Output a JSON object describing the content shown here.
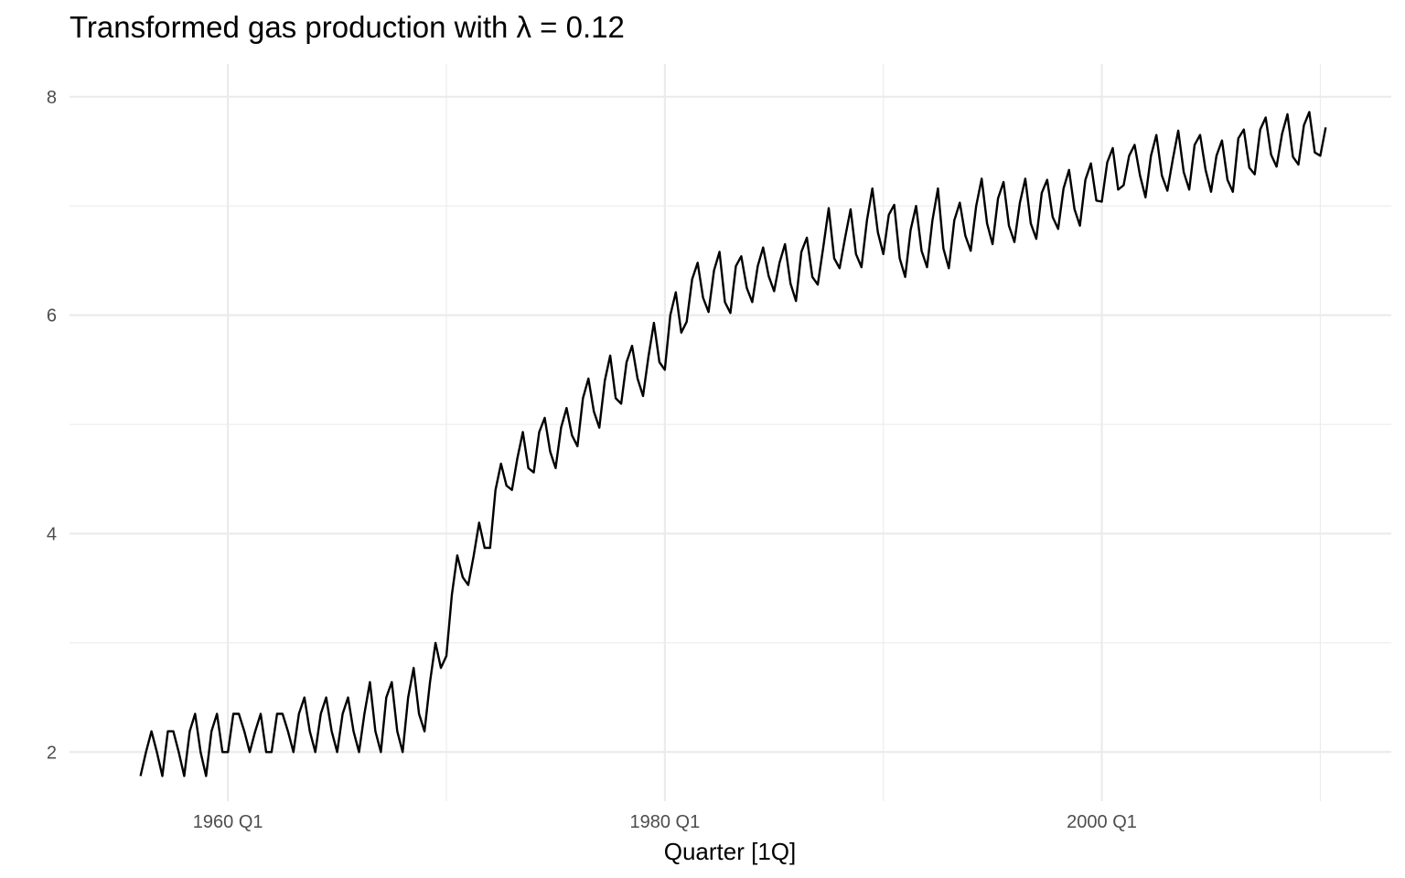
{
  "chart_data": {
    "type": "line",
    "title": "Transformed gas production with λ = 0.12",
    "xlabel": "Quarter [1Q]",
    "ylabel": "",
    "x_start": "1956 Q1",
    "x_end": "2010 Q2",
    "xlim": [
      "1952 Q4",
      "2013 Q2"
    ],
    "ylim": [
      1.55,
      8.3
    ],
    "x_ticks": [
      {
        "quarter": "1960 Q1",
        "label": "1960 Q1"
      },
      {
        "quarter": "1980 Q1",
        "label": "1980 Q1"
      },
      {
        "quarter": "2000 Q1",
        "label": "2000 Q1"
      }
    ],
    "x_minor_ticks": [
      "1970 Q1",
      "1990 Q1",
      "2010 Q1"
    ],
    "y_ticks": [
      2,
      4,
      6,
      8
    ],
    "y_minor_ticks": [
      3,
      5,
      7
    ],
    "grid": true,
    "legend": "none",
    "series": [
      {
        "color": "#000000",
        "values": [
          1.78,
          2.0,
          2.19,
          2.0,
          1.78,
          2.19,
          2.19,
          2.0,
          1.78,
          2.19,
          2.35,
          2.0,
          1.78,
          2.19,
          2.35,
          2.0,
          2.0,
          2.35,
          2.35,
          2.19,
          2.0,
          2.19,
          2.35,
          2.0,
          2.0,
          2.35,
          2.35,
          2.19,
          2.0,
          2.35,
          2.5,
          2.19,
          2.0,
          2.35,
          2.5,
          2.19,
          2.0,
          2.35,
          2.5,
          2.19,
          2.0,
          2.35,
          2.64,
          2.19,
          2.0,
          2.5,
          2.64,
          2.19,
          2.0,
          2.5,
          2.77,
          2.35,
          2.19,
          2.64,
          3.0,
          2.77,
          2.88,
          3.44,
          3.8,
          3.6,
          3.53,
          3.8,
          4.1,
          3.87,
          3.87,
          4.4,
          4.64,
          4.44,
          4.4,
          4.69,
          4.93,
          4.6,
          4.56,
          4.93,
          5.06,
          4.75,
          4.6,
          4.97,
          5.15,
          4.9,
          4.8,
          5.24,
          5.42,
          5.12,
          4.97,
          5.4,
          5.63,
          5.24,
          5.19,
          5.57,
          5.72,
          5.42,
          5.26,
          5.62,
          5.93,
          5.57,
          5.5,
          6.0,
          6.21,
          5.84,
          5.94,
          6.33,
          6.48,
          6.16,
          6.03,
          6.41,
          6.58,
          6.12,
          6.02,
          6.45,
          6.54,
          6.25,
          6.12,
          6.45,
          6.62,
          6.36,
          6.22,
          6.48,
          6.65,
          6.29,
          6.13,
          6.58,
          6.71,
          6.35,
          6.28,
          6.62,
          6.98,
          6.52,
          6.43,
          6.71,
          6.97,
          6.56,
          6.44,
          6.87,
          7.16,
          6.76,
          6.56,
          6.92,
          7.01,
          6.52,
          6.35,
          6.78,
          7.0,
          6.59,
          6.44,
          6.87,
          7.16,
          6.61,
          6.43,
          6.87,
          7.03,
          6.73,
          6.59,
          7.0,
          7.25,
          6.84,
          6.65,
          7.07,
          7.22,
          6.82,
          6.67,
          7.03,
          7.25,
          6.84,
          6.7,
          7.12,
          7.24,
          6.9,
          6.79,
          7.16,
          7.33,
          6.97,
          6.82,
          7.24,
          7.39,
          7.05,
          7.04,
          7.4,
          7.53,
          7.15,
          7.19,
          7.46,
          7.56,
          7.28,
          7.08,
          7.46,
          7.65,
          7.28,
          7.14,
          7.43,
          7.69,
          7.31,
          7.15,
          7.56,
          7.65,
          7.33,
          7.13,
          7.46,
          7.6,
          7.24,
          7.13,
          7.62,
          7.7,
          7.35,
          7.29,
          7.7,
          7.81,
          7.47,
          7.36,
          7.66,
          7.84,
          7.45,
          7.38,
          7.74,
          7.86,
          7.49,
          7.46,
          7.72
        ]
      }
    ]
  }
}
